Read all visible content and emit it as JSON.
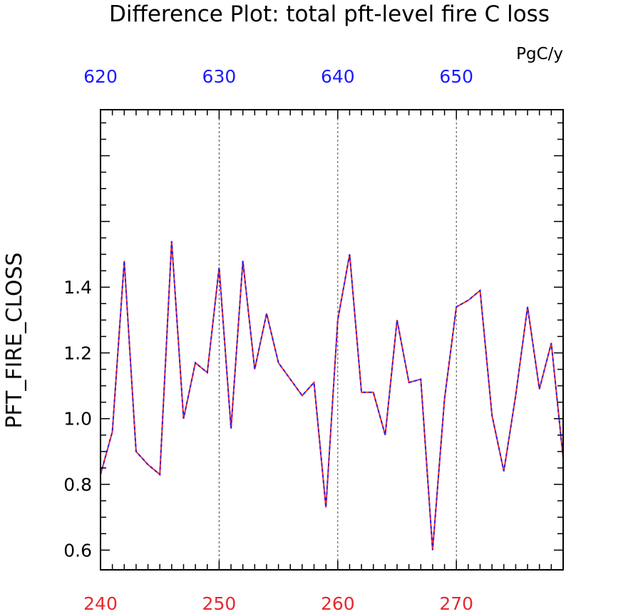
{
  "colors": {
    "top_axis": "#1a1aff",
    "bottom_axis": "#e8282d",
    "series_a": "#ff2a1a",
    "series_b": "#2020ff",
    "axis": "#000000",
    "grid": "#444444"
  },
  "chart_data": {
    "type": "line",
    "title": "Difference Plot: total pft-level fire C loss",
    "units": "PgC/y",
    "ylabel": "PFT_FIRE_CLOSS",
    "xlim": [
      240,
      279
    ],
    "ylim": [
      0.54,
      1.94
    ],
    "grid": "vertical dashed at major x ticks",
    "y_major_ticks": [
      0.6,
      0.8,
      1.0,
      1.2,
      1.4
    ],
    "y_tick_labels": [
      "0.6",
      "0.8",
      "1.0",
      "1.2",
      "1.4"
    ],
    "x_bottom_ticks": [
      240,
      250,
      260,
      270
    ],
    "x_bottom_tick_labels": [
      "240",
      "250",
      "260",
      "270"
    ],
    "x_top_ticks": [
      620,
      630,
      640,
      650
    ],
    "x_top_tick_labels": [
      "620",
      "630",
      "640",
      "650"
    ],
    "x_top_offset": 380,
    "x": [
      240,
      241,
      242,
      243,
      244,
      245,
      246,
      247,
      248,
      249,
      250,
      251,
      252,
      253,
      254,
      255,
      256,
      257,
      258,
      259,
      260,
      261,
      262,
      263,
      264,
      265,
      266,
      267,
      268,
      269,
      270,
      271,
      272,
      273,
      274,
      275,
      276,
      277,
      278,
      279
    ],
    "series": [
      {
        "values": [
          0.83,
          0.96,
          1.48,
          0.9,
          0.86,
          0.83,
          1.54,
          1.0,
          1.17,
          1.14,
          1.46,
          0.97,
          1.48,
          1.15,
          1.32,
          1.17,
          1.12,
          1.07,
          1.11,
          0.73,
          1.3,
          1.5,
          1.08,
          1.08,
          0.95,
          1.3,
          1.11,
          1.12,
          0.6,
          1.06,
          1.34,
          1.36,
          1.39,
          1.01,
          0.84,
          1.07,
          1.34,
          1.09,
          1.23,
          0.88
        ]
      },
      {
        "values": [
          0.83,
          0.96,
          1.48,
          0.9,
          0.86,
          0.83,
          1.54,
          1.0,
          1.17,
          1.14,
          1.46,
          0.97,
          1.48,
          1.15,
          1.32,
          1.17,
          1.12,
          1.07,
          1.11,
          0.73,
          1.3,
          1.5,
          1.08,
          1.08,
          0.95,
          1.3,
          1.11,
          1.12,
          0.6,
          1.06,
          1.34,
          1.36,
          1.39,
          1.01,
          0.84,
          1.07,
          1.34,
          1.09,
          1.23,
          0.88
        ]
      }
    ]
  }
}
